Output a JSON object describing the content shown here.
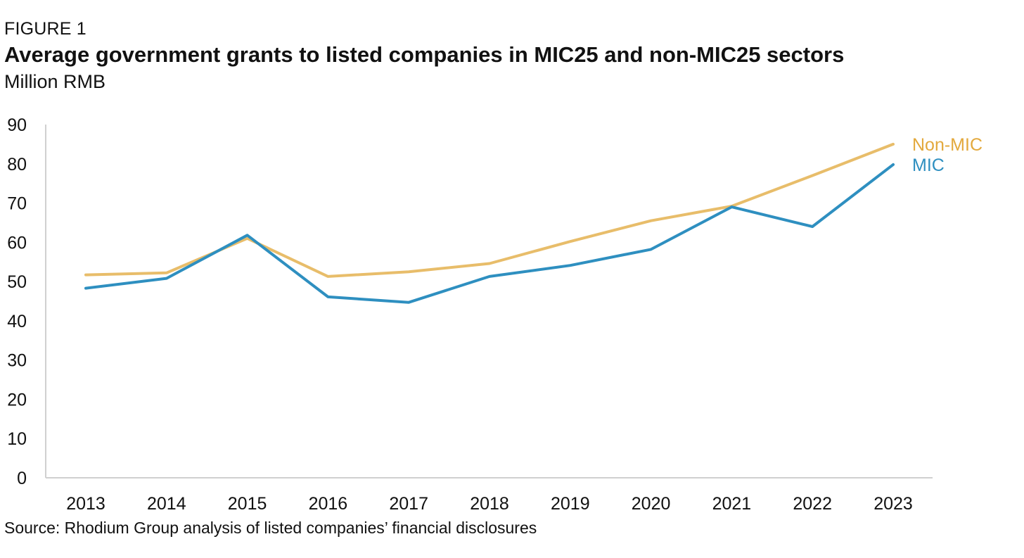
{
  "figure_label": "FIGURE 1",
  "source": "Source: Rhodium Group analysis of listed companies’ financial disclosures",
  "colors": {
    "non_mic": "#E8BD6A",
    "non_mic_label": "#E3A93D",
    "mic": "#2E8FC0",
    "axis": "#D0D0D0"
  },
  "chart_data": {
    "type": "line",
    "title": "Average government grants to listed companies in MIC25 and non-MIC25 sectors",
    "subtitle": "Million RMB",
    "xlabel": "",
    "ylabel": "",
    "categories": [
      "2013",
      "2014",
      "2015",
      "2016",
      "2017",
      "2018",
      "2019",
      "2020",
      "2021",
      "2022",
      "2023"
    ],
    "ylim": [
      0,
      90
    ],
    "yticks": [
      0,
      10,
      20,
      30,
      40,
      50,
      60,
      70,
      80,
      90
    ],
    "grid": false,
    "legend": "direct labels at line ends",
    "series": [
      {
        "name": "Non-MIC",
        "color": "#E8BD6A",
        "values": [
          51.7,
          52.2,
          61.0,
          51.3,
          52.5,
          54.6,
          60.2,
          65.5,
          69.2,
          77.0,
          85.0
        ]
      },
      {
        "name": "MIC",
        "color": "#2E8FC0",
        "values": [
          48.3,
          50.8,
          61.8,
          46.1,
          44.7,
          51.3,
          54.1,
          58.2,
          69.0,
          64.0,
          79.8
        ]
      }
    ]
  }
}
